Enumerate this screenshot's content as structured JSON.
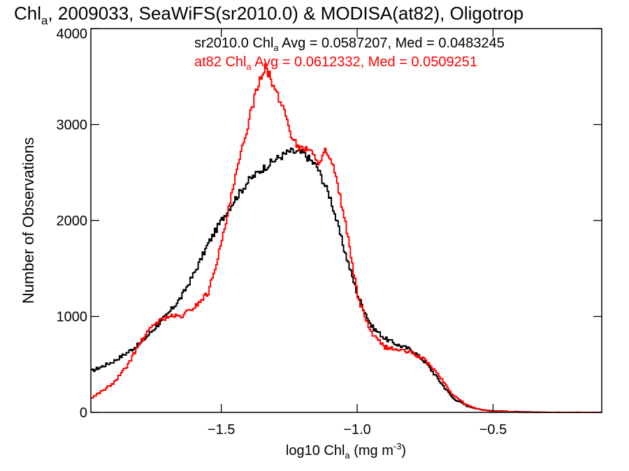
{
  "chart_data": {
    "type": "line",
    "title": {
      "pre": "Chl",
      "sub": "a",
      "post": ", 2009033, SeaWiFS(sr2010.0) & MODISA(at82), Oligotrop"
    },
    "xlabel": {
      "pre": "log10 Chl",
      "sub": "a",
      "mid": " (mg m",
      "sup": "-3",
      "post": ")"
    },
    "ylabel": "Number of Observations",
    "xlim": [
      -1.98,
      -0.1
    ],
    "ylim": [
      0,
      4000
    ],
    "xticks": [
      {
        "v": -1.5,
        "label": "−1.5"
      },
      {
        "v": -1.0,
        "label": "−1.0"
      },
      {
        "v": -0.5,
        "label": "−0.5"
      }
    ],
    "yticks": [
      {
        "v": 0,
        "label": "0"
      },
      {
        "v": 1000,
        "label": "1000"
      },
      {
        "v": 2000,
        "label": "2000"
      },
      {
        "v": 3000,
        "label": "3000"
      },
      {
        "v": 4000,
        "label": "4000"
      }
    ],
    "grid": false,
    "legend_position": "top-center",
    "series": [
      {
        "name": "sr2010.0",
        "color": "#000000",
        "legend": {
          "pre": "sr2010.0 Chl",
          "sub": "a",
          "post": " Avg = 0.0587207, Med = 0.0483245"
        },
        "x": [
          -1.98,
          -1.9,
          -1.85,
          -1.8,
          -1.75,
          -1.7,
          -1.65,
          -1.6,
          -1.55,
          -1.5,
          -1.45,
          -1.4,
          -1.35,
          -1.3,
          -1.25,
          -1.2,
          -1.15,
          -1.1,
          -1.05,
          -1.0,
          -0.95,
          -0.9,
          -0.85,
          -0.8,
          -0.75,
          -0.7,
          -0.65,
          -0.6,
          -0.55,
          -0.5,
          -0.4,
          -0.3,
          -0.1
        ],
        "y": [
          430,
          530,
          620,
          720,
          870,
          1020,
          1200,
          1460,
          1760,
          2010,
          2230,
          2420,
          2540,
          2640,
          2720,
          2700,
          2560,
          2230,
          1700,
          1220,
          900,
          770,
          700,
          650,
          520,
          330,
          150,
          70,
          30,
          15,
          5,
          0,
          0
        ]
      },
      {
        "name": "at82",
        "color": "#ff0000",
        "legend": {
          "pre": "at82 Chl",
          "sub": "a",
          "post": " Avg = 0.0612332, Med = 0.0509251"
        },
        "x": [
          -1.98,
          -1.9,
          -1.85,
          -1.8,
          -1.75,
          -1.7,
          -1.65,
          -1.6,
          -1.55,
          -1.5,
          -1.45,
          -1.4,
          -1.37,
          -1.34,
          -1.3,
          -1.27,
          -1.24,
          -1.21,
          -1.18,
          -1.15,
          -1.12,
          -1.09,
          -1.05,
          -1.0,
          -0.95,
          -0.9,
          -0.85,
          -0.8,
          -0.75,
          -0.7,
          -0.65,
          -0.6,
          -0.55,
          -0.5,
          -0.4,
          -0.3,
          -0.1
        ],
        "y": [
          150,
          300,
          480,
          730,
          920,
          1000,
          1000,
          1100,
          1250,
          1780,
          2450,
          3050,
          3400,
          3620,
          3320,
          3150,
          2850,
          2740,
          2760,
          2600,
          2720,
          2550,
          2050,
          1200,
          820,
          680,
          650,
          620,
          540,
          380,
          180,
          80,
          30,
          10,
          3,
          0,
          0
        ]
      }
    ]
  }
}
